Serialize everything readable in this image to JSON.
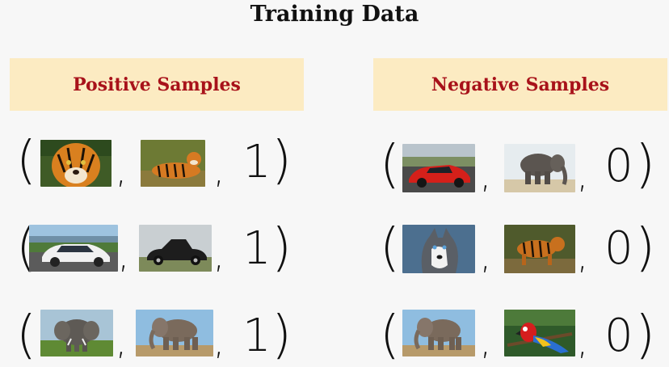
{
  "title": "Training Data",
  "positive": {
    "header": "Positive Samples",
    "rows": [
      {
        "images": [
          "tiger-face-image",
          "tiger-lying-image"
        ],
        "label": "1"
      },
      {
        "images": [
          "white-car-image",
          "vintage-car-image"
        ],
        "label": "1"
      },
      {
        "images": [
          "elephant-front-image",
          "elephant-walking-image"
        ],
        "label": "1"
      }
    ]
  },
  "negative": {
    "header": "Negative Samples",
    "rows": [
      {
        "images": [
          "red-sports-car-image",
          "elephant-side-image"
        ],
        "label": "0"
      },
      {
        "images": [
          "husky-image",
          "tiger-walking-image"
        ],
        "label": "0"
      },
      {
        "images": [
          "elephant-walking-image",
          "parrot-image"
        ],
        "label": "0"
      }
    ]
  },
  "syntax": {
    "open": "(",
    "comma": ",",
    "close": ")"
  },
  "colors": {
    "header_bg": "#fcebc2",
    "header_text": "#a8121a"
  }
}
